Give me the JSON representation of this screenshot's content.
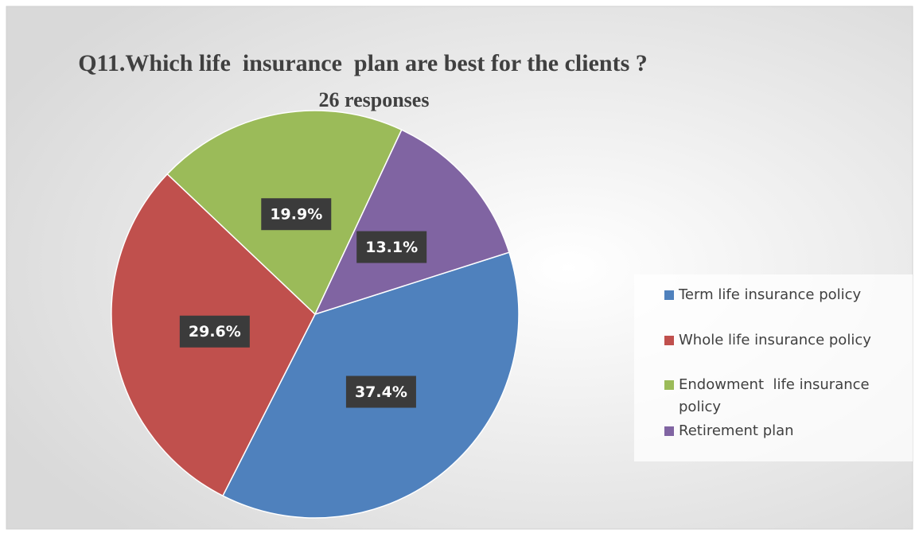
{
  "chart_data": {
    "type": "pie",
    "title": "Q11.Which life  insurance  plan are best for the clients ?",
    "subtitle": "26 responses",
    "categories": [
      "Term life insurance policy",
      "Whole life insurance policy",
      "Endowment  life insurance policy",
      "Retirement plan"
    ],
    "values": [
      37.4,
      29.6,
      19.9,
      13.1
    ],
    "value_labels": [
      "37.4%",
      "29.6%",
      "19.9%",
      "13.1%"
    ],
    "colors": [
      "#4f81bd",
      "#c0504d",
      "#9bbb59",
      "#8064a2"
    ],
    "legend": "right"
  }
}
